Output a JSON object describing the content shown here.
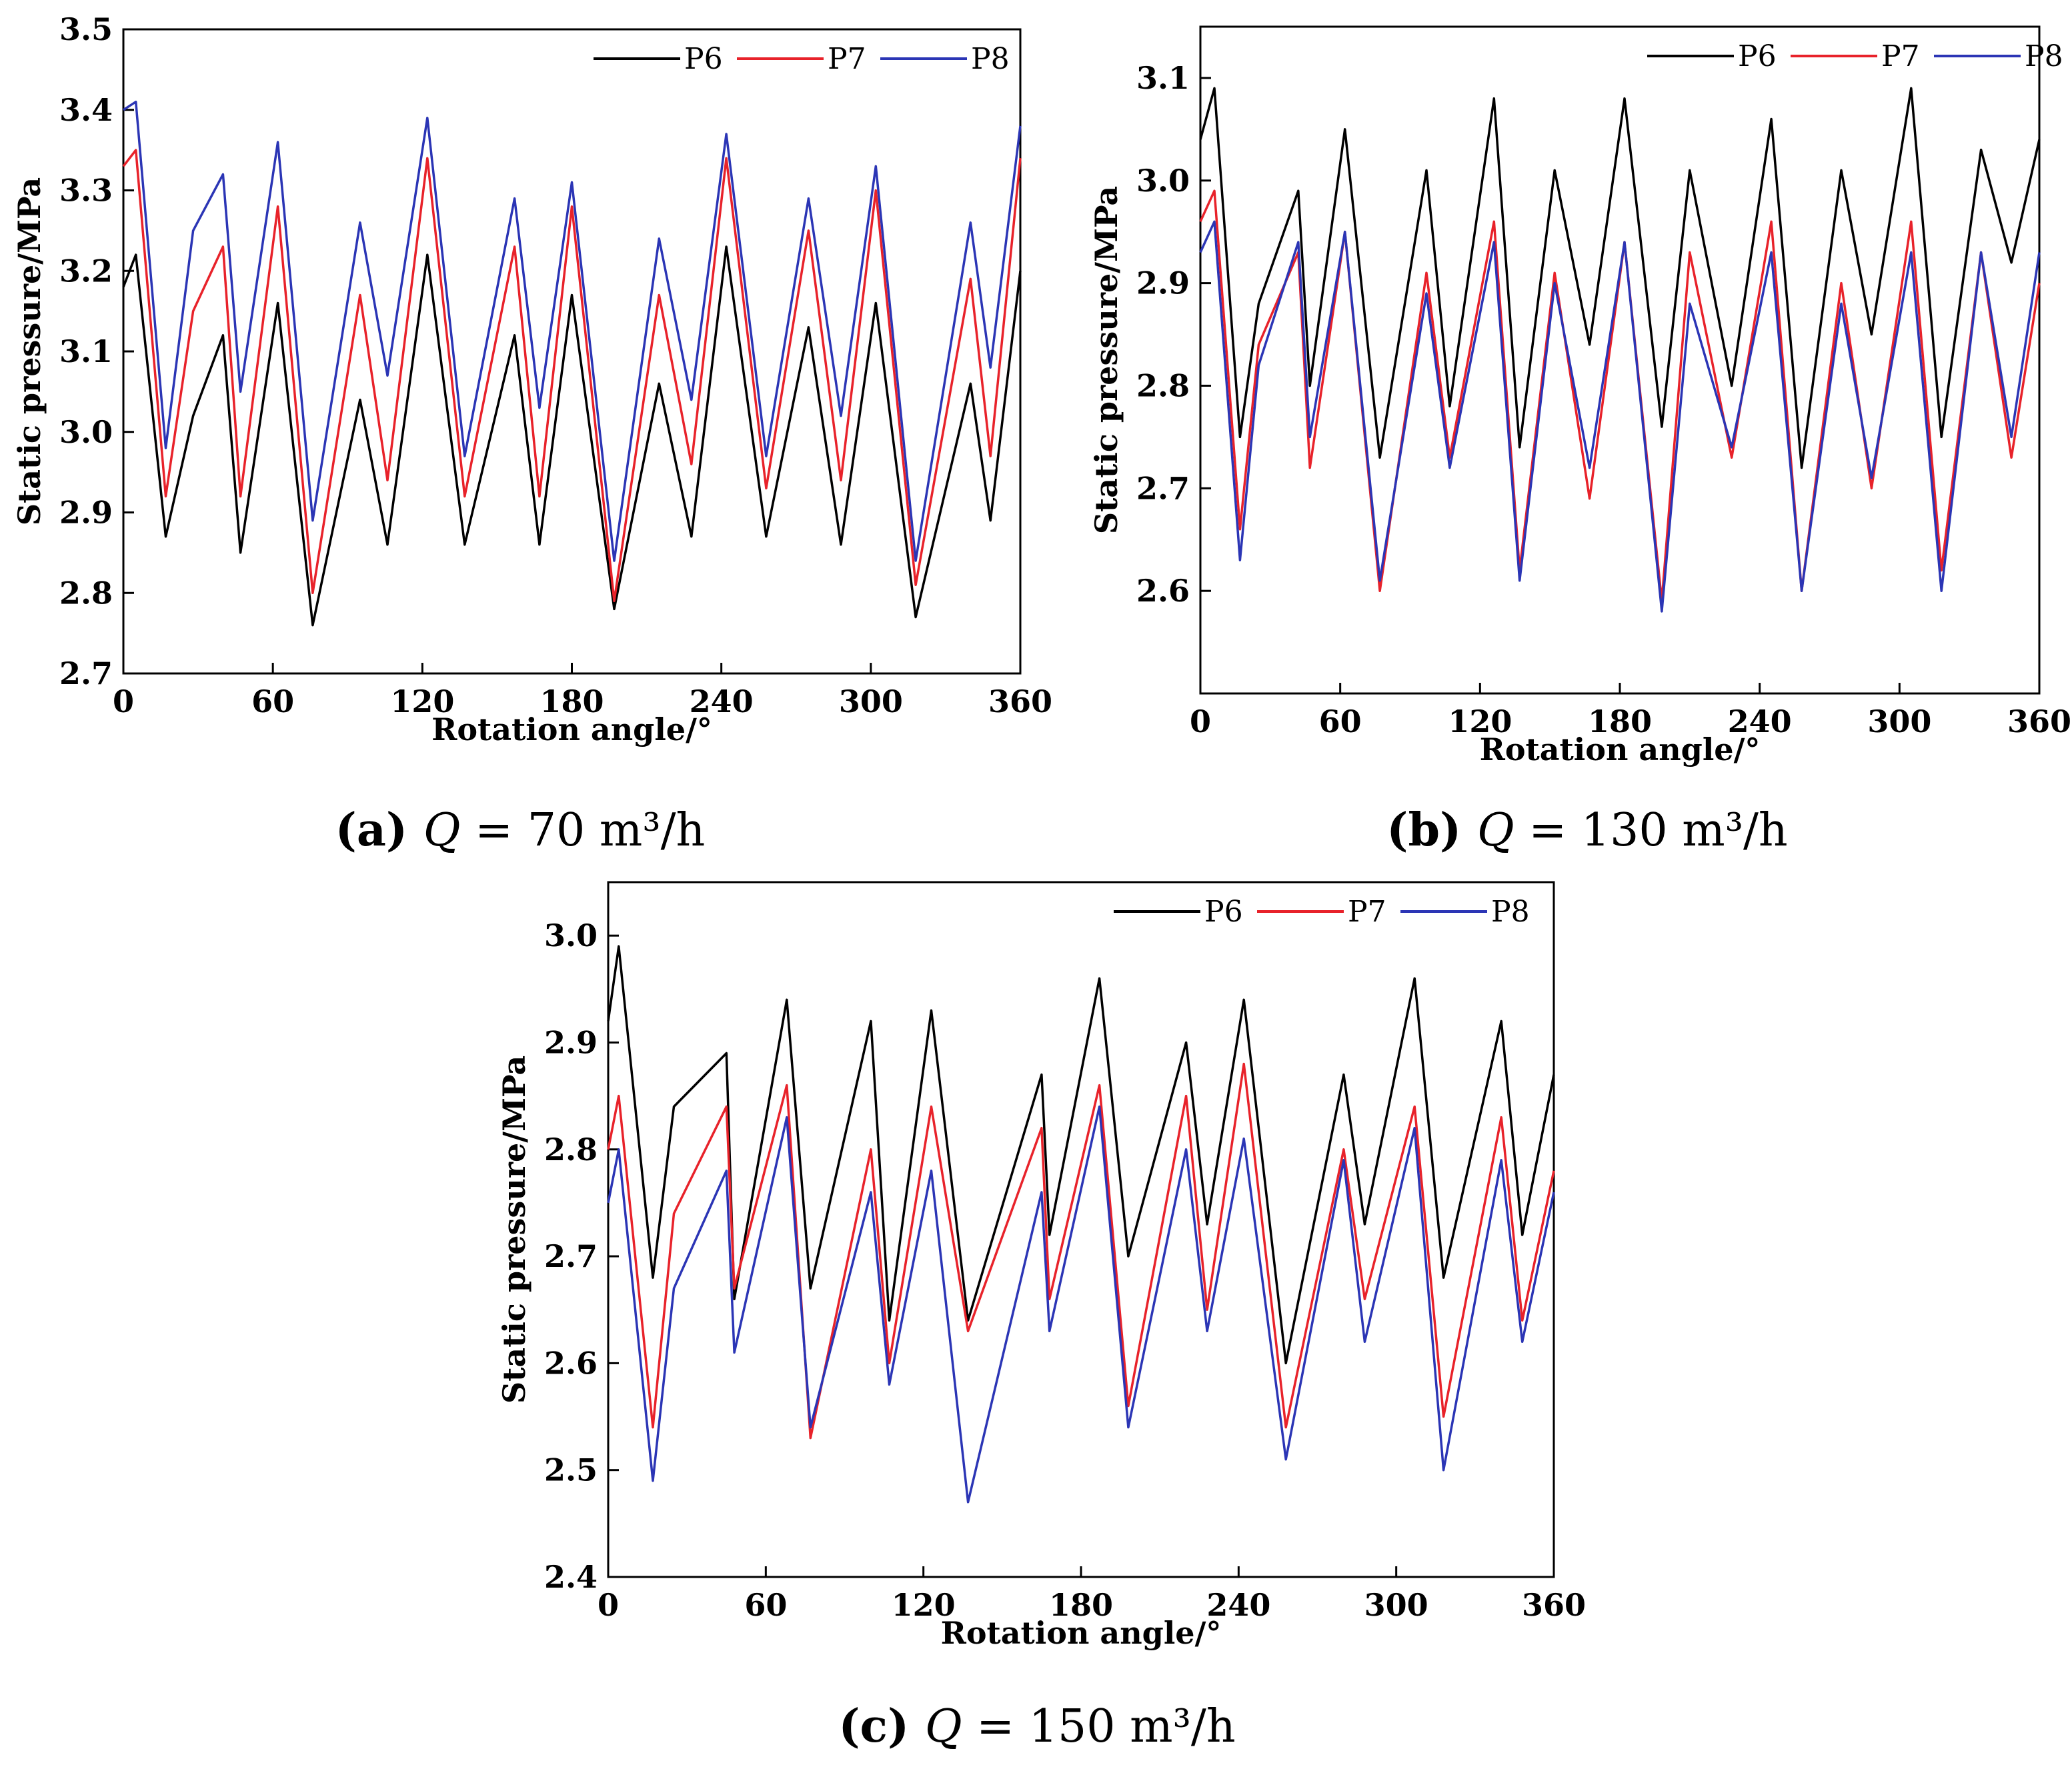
{
  "chart_data": [
    {
      "type": "line",
      "panel": "a",
      "caption": {
        "letter": "(a)",
        "q": "Q",
        "rest": " = 70 m³/h"
      },
      "xlabel": "Rotation angle/°",
      "ylabel": "Static pressure/MPa",
      "xlim": [
        0,
        360
      ],
      "ylim": [
        2.7,
        3.5
      ],
      "xticks": [
        0,
        60,
        120,
        180,
        240,
        300,
        360
      ],
      "xtick_labels": [
        "0",
        "60",
        "120",
        "180",
        "240",
        "300",
        "360"
      ],
      "yticks": [
        2.7,
        2.8,
        2.9,
        3.0,
        3.1,
        3.2,
        3.3,
        3.4,
        3.5
      ],
      "ytick_labels": [
        "2.7",
        "2.8",
        "2.9",
        "3.0",
        "3.1",
        "3.2",
        "3.3",
        "3.4",
        "3.5"
      ],
      "grid": false,
      "legend": "top-right",
      "series": [
        {
          "name": "P6",
          "color": "#000000",
          "x": [
            0,
            5,
            17,
            28,
            40,
            47,
            62,
            76,
            95,
            106,
            122,
            137,
            157,
            167,
            180,
            197,
            215,
            228,
            242,
            258,
            275,
            288,
            302,
            318,
            340,
            348,
            360
          ],
          "y": [
            3.18,
            3.22,
            2.87,
            3.02,
            3.12,
            2.85,
            3.16,
            2.76,
            3.04,
            2.86,
            3.22,
            2.86,
            3.12,
            2.86,
            3.17,
            2.78,
            3.06,
            2.87,
            3.23,
            2.87,
            3.13,
            2.86,
            3.16,
            2.77,
            3.06,
            2.89,
            3.2
          ]
        },
        {
          "name": "P7",
          "color": "#e8222a",
          "x": [
            0,
            5,
            17,
            28,
            40,
            47,
            62,
            76,
            95,
            106,
            122,
            137,
            157,
            167,
            180,
            197,
            215,
            228,
            242,
            258,
            275,
            288,
            302,
            318,
            340,
            348,
            360
          ],
          "y": [
            3.33,
            3.35,
            2.92,
            3.15,
            3.23,
            2.92,
            3.28,
            2.8,
            3.17,
            2.94,
            3.34,
            2.92,
            3.23,
            2.92,
            3.28,
            2.79,
            3.17,
            2.96,
            3.34,
            2.93,
            3.25,
            2.94,
            3.3,
            2.81,
            3.19,
            2.97,
            3.34
          ]
        },
        {
          "name": "P8",
          "color": "#2b35b5",
          "x": [
            0,
            5,
            17,
            28,
            40,
            47,
            62,
            76,
            95,
            106,
            122,
            137,
            157,
            167,
            180,
            197,
            215,
            228,
            242,
            258,
            275,
            288,
            302,
            318,
            340,
            348,
            360
          ],
          "y": [
            3.4,
            3.41,
            2.98,
            3.25,
            3.32,
            3.05,
            3.36,
            2.89,
            3.26,
            3.07,
            3.39,
            2.97,
            3.29,
            3.03,
            3.31,
            2.84,
            3.24,
            3.04,
            3.37,
            2.97,
            3.29,
            3.02,
            3.33,
            2.84,
            3.26,
            3.08,
            3.38
          ]
        }
      ]
    },
    {
      "type": "line",
      "panel": "b",
      "caption": {
        "letter": "(b)",
        "q": "Q",
        "rest": " = 130 m³/h"
      },
      "xlabel": "Rotation angle/°",
      "ylabel": "Static pressure/MPa",
      "xlim": [
        0,
        360
      ],
      "ylim": [
        2.5,
        3.15
      ],
      "xticks": [
        0,
        60,
        120,
        180,
        240,
        300,
        360
      ],
      "xtick_labels": [
        "0",
        "60",
        "120",
        "180",
        "240",
        "300",
        "360"
      ],
      "yticks": [
        2.6,
        2.7,
        2.8,
        2.9,
        3.0,
        3.1
      ],
      "ytick_labels": [
        "2.6",
        "2.7",
        "2.8",
        "2.9",
        "3.0",
        "3.1"
      ],
      "grid": false,
      "legend": "top-right",
      "series": [
        {
          "name": "P6",
          "color": "#000000",
          "x": [
            0,
            6,
            17,
            25,
            42,
            47,
            62,
            77,
            97,
            107,
            126,
            137,
            152,
            167,
            182,
            198,
            210,
            228,
            245,
            258,
            275,
            288,
            305,
            318,
            335,
            348,
            360
          ],
          "y": [
            3.04,
            3.09,
            2.75,
            2.88,
            2.99,
            2.8,
            3.05,
            2.73,
            3.01,
            2.78,
            3.08,
            2.74,
            3.01,
            2.84,
            3.08,
            2.76,
            3.01,
            2.8,
            3.06,
            2.72,
            3.01,
            2.85,
            3.09,
            2.75,
            3.03,
            2.92,
            3.04
          ]
        },
        {
          "name": "P7",
          "color": "#e8222a",
          "x": [
            0,
            6,
            17,
            25,
            42,
            47,
            62,
            77,
            97,
            107,
            126,
            137,
            152,
            167,
            182,
            198,
            210,
            228,
            245,
            258,
            275,
            288,
            305,
            318,
            335,
            348,
            360
          ],
          "y": [
            2.96,
            2.99,
            2.66,
            2.84,
            2.93,
            2.72,
            2.95,
            2.6,
            2.91,
            2.73,
            2.96,
            2.62,
            2.91,
            2.69,
            2.94,
            2.59,
            2.93,
            2.73,
            2.96,
            2.6,
            2.9,
            2.7,
            2.96,
            2.62,
            2.93,
            2.73,
            2.9
          ]
        },
        {
          "name": "P8",
          "color": "#2b35b5",
          "x": [
            0,
            6,
            17,
            25,
            42,
            47,
            62,
            77,
            97,
            107,
            126,
            137,
            152,
            167,
            182,
            198,
            210,
            228,
            245,
            258,
            275,
            288,
            305,
            318,
            335,
            348,
            360
          ],
          "y": [
            2.93,
            2.96,
            2.63,
            2.82,
            2.94,
            2.75,
            2.95,
            2.61,
            2.89,
            2.72,
            2.94,
            2.61,
            2.9,
            2.72,
            2.94,
            2.58,
            2.88,
            2.74,
            2.93,
            2.6,
            2.88,
            2.71,
            2.93,
            2.6,
            2.93,
            2.75,
            2.93
          ]
        }
      ]
    },
    {
      "type": "line",
      "panel": "c",
      "caption": {
        "letter": "(c)",
        "q": "Q",
        "rest": " = 150 m³/h"
      },
      "xlabel": "Rotation angle/°",
      "ylabel": "Static pressure/MPa",
      "xlim": [
        0,
        360
      ],
      "ylim": [
        2.4,
        3.05
      ],
      "xticks": [
        0,
        60,
        120,
        180,
        240,
        300,
        360
      ],
      "xtick_labels": [
        "0",
        "60",
        "120",
        "180",
        "240",
        "300",
        "360"
      ],
      "yticks": [
        2.4,
        2.5,
        2.6,
        2.7,
        2.8,
        2.9,
        3.0
      ],
      "ytick_labels": [
        "2.4",
        "2.5",
        "2.6",
        "2.7",
        "2.8",
        "2.9",
        "3.0"
      ],
      "grid": false,
      "legend": "top-right",
      "series": [
        {
          "name": "P6",
          "color": "#000000",
          "x": [
            0,
            4,
            17,
            25,
            45,
            48,
            68,
            77,
            100,
            107,
            123,
            137,
            165,
            168,
            187,
            198,
            220,
            228,
            242,
            258,
            280,
            288,
            307,
            318,
            340,
            348,
            360
          ],
          "y": [
            2.92,
            2.99,
            2.68,
            2.84,
            2.89,
            2.66,
            2.94,
            2.67,
            2.92,
            2.64,
            2.93,
            2.64,
            2.87,
            2.72,
            2.96,
            2.7,
            2.9,
            2.73,
            2.94,
            2.6,
            2.87,
            2.73,
            2.96,
            2.68,
            2.92,
            2.72,
            2.87
          ]
        },
        {
          "name": "P7",
          "color": "#e8222a",
          "x": [
            0,
            4,
            17,
            25,
            45,
            48,
            68,
            77,
            100,
            107,
            123,
            137,
            165,
            168,
            187,
            198,
            220,
            228,
            242,
            258,
            280,
            288,
            307,
            318,
            340,
            348,
            360
          ],
          "y": [
            2.8,
            2.85,
            2.54,
            2.74,
            2.84,
            2.67,
            2.86,
            2.53,
            2.8,
            2.6,
            2.84,
            2.63,
            2.82,
            2.66,
            2.86,
            2.56,
            2.85,
            2.65,
            2.88,
            2.54,
            2.8,
            2.66,
            2.84,
            2.55,
            2.83,
            2.64,
            2.78
          ]
        },
        {
          "name": "P8",
          "color": "#2b35b5",
          "x": [
            0,
            4,
            17,
            25,
            45,
            48,
            68,
            77,
            100,
            107,
            123,
            137,
            165,
            168,
            187,
            198,
            220,
            228,
            242,
            258,
            280,
            288,
            307,
            318,
            340,
            348,
            360
          ],
          "y": [
            2.75,
            2.8,
            2.49,
            2.67,
            2.78,
            2.61,
            2.83,
            2.54,
            2.76,
            2.58,
            2.78,
            2.47,
            2.76,
            2.63,
            2.84,
            2.54,
            2.8,
            2.63,
            2.81,
            2.51,
            2.79,
            2.62,
            2.82,
            2.5,
            2.79,
            2.62,
            2.76
          ]
        }
      ]
    }
  ]
}
